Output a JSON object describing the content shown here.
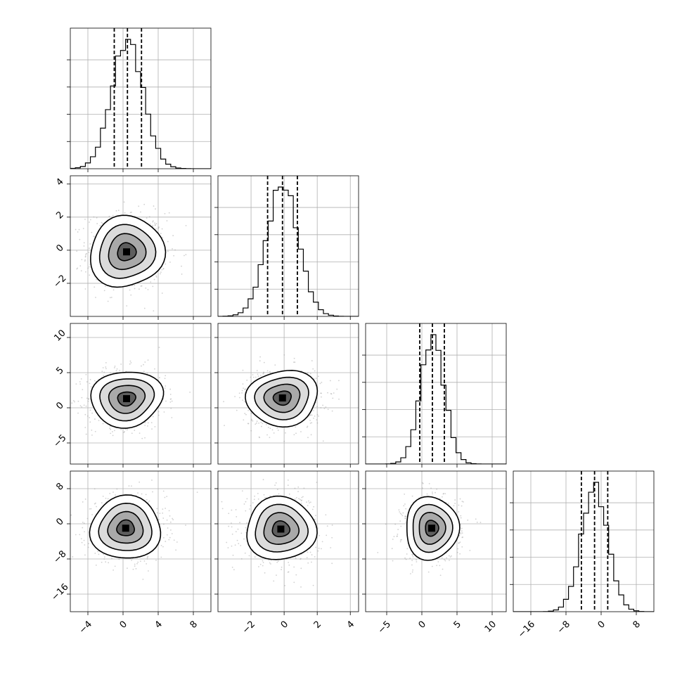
{
  "chart_data": {
    "type": "corner",
    "n_params": 4,
    "colors": {
      "line": "#000000",
      "grid": "#b0b0b0",
      "scatter": "#9a9a9a"
    },
    "params": [
      {
        "range": [
          -6,
          10
        ],
        "ticks": [
          -4,
          0,
          4,
          8
        ],
        "tick_labels": [
          "−4",
          "0",
          "4",
          "8"
        ],
        "mean": 0.5,
        "sd": 1.8,
        "quantiles": [
          -1.0,
          0.5,
          2.1
        ]
      },
      {
        "range": [
          -4,
          4.5
        ],
        "ticks": [
          -2,
          0,
          2,
          4
        ],
        "tick_labels": [
          "−2",
          "0",
          "2",
          "4"
        ],
        "mean": -0.1,
        "sd": 0.95,
        "quantiles": [
          -1.0,
          -0.1,
          0.8
        ]
      },
      {
        "range": [
          -8,
          12
        ],
        "ticks": [
          -5,
          0,
          5,
          10
        ],
        "tick_labels": [
          "−5",
          "0",
          "5",
          "10"
        ],
        "mean": 1.5,
        "sd": 1.7,
        "quantiles": [
          -0.3,
          1.5,
          3.2
        ]
      },
      {
        "range": [
          -20,
          12
        ],
        "ticks": [
          -16,
          -8,
          0,
          8
        ],
        "tick_labels": [
          "−16",
          "−8",
          "0",
          "8"
        ],
        "mean": -1.5,
        "sd": 3.0,
        "quantiles": [
          -4.5,
          -1.5,
          1.5
        ]
      }
    ],
    "cells": [
      {
        "row": 0,
        "col": 0,
        "kind": "hist"
      },
      {
        "row": 1,
        "col": 0,
        "kind": "scatter",
        "center": [
          0.4,
          -0.1
        ]
      },
      {
        "row": 1,
        "col": 1,
        "kind": "hist"
      },
      {
        "row": 2,
        "col": 0,
        "kind": "scatter",
        "center": [
          0.4,
          1.3
        ]
      },
      {
        "row": 2,
        "col": 1,
        "kind": "scatter",
        "center": [
          -0.1,
          1.4
        ]
      },
      {
        "row": 2,
        "col": 2,
        "kind": "hist"
      },
      {
        "row": 3,
        "col": 0,
        "kind": "scatter",
        "center": [
          0.3,
          -1.0
        ]
      },
      {
        "row": 3,
        "col": 1,
        "kind": "scatter",
        "center": [
          -0.2,
          -1.2
        ]
      },
      {
        "row": 3,
        "col": 2,
        "kind": "scatter",
        "center": [
          1.4,
          -1.0
        ]
      },
      {
        "row": 3,
        "col": 3,
        "kind": "hist"
      }
    ],
    "x_tick_labels_rotated": true,
    "y_tick_labels_rotated": true,
    "grid": true,
    "contour_levels_sigma": [
      0.5,
      1.0,
      1.5,
      2.0
    ]
  }
}
